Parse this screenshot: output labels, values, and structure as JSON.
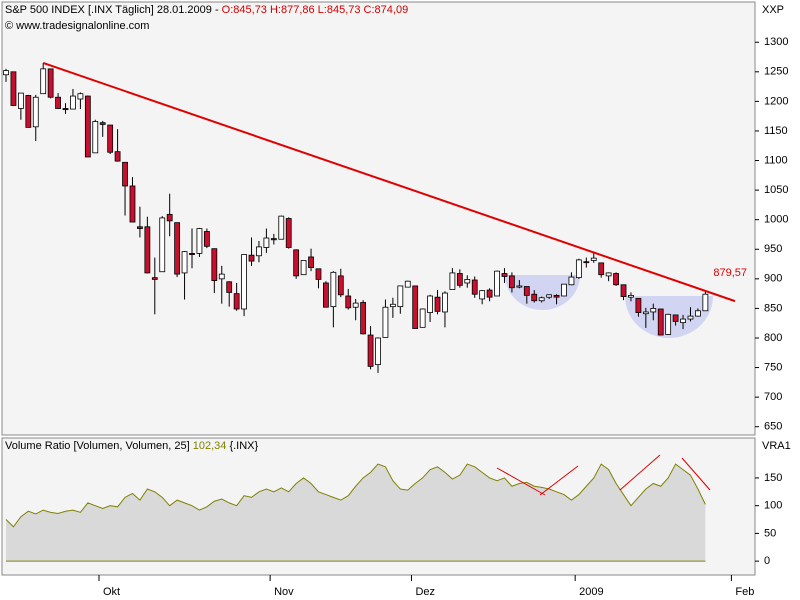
{
  "chart_data": [
    {
      "type": "candlestick",
      "title": "S&P 500 INDEX [.INX  Täglich] 28.01.2009 -",
      "subtitle": "O:845,73 H:877,86 L:845,73 C:874,09",
      "source": "© www.tradesignalonline.com",
      "axis_label": "XXP",
      "up_color": "#ffffff",
      "down_color": "#c8102e",
      "categories": [
        null,
        null,
        null,
        null,
        null,
        null,
        null,
        null,
        null,
        null,
        null,
        null,
        null,
        null,
        null,
        null,
        null,
        null,
        null,
        null,
        null,
        null,
        null,
        null,
        null,
        null,
        null,
        null,
        null,
        null,
        null,
        null,
        null,
        null,
        null,
        null,
        null,
        null,
        null,
        null,
        null,
        null,
        null,
        null,
        null,
        null,
        null,
        null,
        null,
        null,
        null,
        null,
        null,
        null,
        null,
        null,
        null,
        null,
        null,
        null,
        null,
        null,
        null,
        null,
        null,
        null,
        null,
        null,
        null,
        null,
        null,
        null,
        null,
        null,
        null,
        null,
        null,
        null,
        null,
        null,
        null,
        null,
        null,
        null,
        null,
        null,
        null,
        null,
        null,
        null,
        null,
        null,
        null,
        null,
        null
      ],
      "ohlc": [
        [
          1245,
          1255,
          1233,
          1252
        ],
        [
          1250,
          1250,
          1192,
          1193
        ],
        [
          1188,
          1214,
          1169,
          1214
        ],
        [
          1210,
          1211,
          1156,
          1156
        ],
        [
          1157,
          1211,
          1133,
          1207
        ],
        [
          1213,
          1265,
          1213,
          1255
        ],
        [
          1255,
          1255,
          1205,
          1207
        ],
        [
          1207,
          1214,
          1187,
          1188
        ],
        [
          1188,
          1197,
          1179,
          1186
        ],
        [
          1187,
          1221,
          1187,
          1209
        ],
        [
          1204,
          1215,
          1187,
          1213
        ],
        [
          1209,
          1210,
          1106,
          1106
        ],
        [
          1113,
          1169,
          1113,
          1166
        ],
        [
          1164,
          1167,
          1140,
          1161
        ],
        [
          1160,
          1160,
          1111,
          1114
        ],
        [
          1115,
          1153,
          1098,
          1099
        ],
        [
          1097,
          1097,
          1007,
          1057
        ],
        [
          1057,
          1072,
          996,
          996
        ],
        [
          988,
          1022,
          970,
          985
        ],
        [
          988,
          1005,
          909,
          910
        ],
        [
          902,
          936,
          840,
          899
        ],
        [
          912,
          1006,
          912,
          1003
        ],
        [
          1009,
          1044,
          972,
          998
        ],
        [
          995,
          995,
          903,
          908
        ],
        [
          910,
          947,
          865,
          946
        ],
        [
          943,
          985,
          918,
          941
        ],
        [
          943,
          986,
          937,
          985
        ],
        [
          980,
          985,
          952,
          955
        ],
        [
          951,
          951,
          876,
          897
        ],
        [
          900,
          922,
          858,
          908
        ],
        [
          895,
          896,
          853,
          877
        ],
        [
          875,
          893,
          846,
          849
        ],
        [
          849,
          941,
          837,
          941
        ],
        [
          940,
          970,
          922,
          930
        ],
        [
          939,
          964,
          928,
          954
        ],
        [
          953,
          985,
          944,
          969
        ],
        [
          968,
          976,
          958,
          966
        ],
        [
          967,
          1007,
          967,
          1006
        ],
        [
          1002,
          1004,
          951,
          953
        ],
        [
          949,
          950,
          900,
          905
        ],
        [
          907,
          931,
          907,
          931
        ],
        [
          937,
          951,
          913,
          919
        ],
        [
          917,
          917,
          884,
          899
        ],
        [
          893,
          896,
          852,
          852
        ],
        [
          853,
          913,
          818,
          911
        ],
        [
          905,
          917,
          869,
          873
        ],
        [
          871,
          883,
          848,
          851
        ],
        [
          852,
          866,
          830,
          859
        ],
        [
          860,
          864,
          806,
          807
        ],
        [
          805,
          820,
          747,
          752
        ],
        [
          755,
          801,
          741,
          800
        ],
        [
          801,
          865,
          801,
          852
        ],
        [
          853,
          868,
          834,
          857
        ],
        [
          853,
          888,
          841,
          888
        ],
        [
          886,
          897,
          886,
          896
        ],
        [
          888,
          888,
          816,
          816
        ],
        [
          818,
          850,
          818,
          849
        ],
        [
          843,
          873,
          827,
          871
        ],
        [
          869,
          881,
          840,
          845
        ],
        [
          844,
          879,
          818,
          876
        ],
        [
          882,
          918,
          882,
          910
        ],
        [
          909,
          916,
          885,
          889
        ],
        [
          893,
          906,
          885,
          899
        ],
        [
          898,
          904,
          868,
          874
        ],
        [
          866,
          881,
          857,
          880
        ],
        [
          881,
          884,
          862,
          869
        ],
        [
          871,
          914,
          871,
          913
        ],
        [
          909,
          918,
          893,
          904
        ],
        [
          905,
          911,
          877,
          885
        ],
        [
          886,
          898,
          884,
          888
        ],
        [
          887,
          887,
          858,
          872
        ],
        [
          874,
          881,
          860,
          863
        ],
        [
          863,
          870,
          860,
          868
        ],
        [
          869,
          874,
          866,
          873
        ],
        [
          872,
          874,
          857,
          869
        ],
        [
          871,
          891,
          871,
          891
        ],
        [
          890,
          911,
          889,
          903
        ],
        [
          902,
          934,
          900,
          932
        ],
        [
          929,
          936,
          919,
          928
        ],
        [
          931,
          943,
          927,
          935
        ],
        [
          927,
          927,
          902,
          907
        ],
        [
          905,
          911,
          896,
          910
        ],
        [
          909,
          911,
          888,
          890
        ],
        [
          890,
          890,
          864,
          870
        ],
        [
          869,
          877,
          862,
          872
        ],
        [
          867,
          867,
          836,
          843
        ],
        [
          841,
          851,
          817,
          844
        ],
        [
          844,
          858,
          830,
          850
        ],
        [
          849,
          849,
          805,
          805
        ],
        [
          806,
          841,
          805,
          840
        ],
        [
          839,
          839,
          821,
          828
        ],
        [
          826,
          839,
          815,
          832
        ],
        [
          832,
          852,
          828,
          837
        ],
        [
          837,
          850,
          836,
          846
        ],
        [
          846,
          878,
          846,
          874
        ]
      ],
      "ylim": [
        636,
        1368
      ],
      "yticks": [
        650,
        700,
        750,
        800,
        850,
        900,
        950,
        1000,
        1050,
        1100,
        1150,
        1200,
        1250,
        1300
      ],
      "trendline": {
        "x": [
          5,
          94
        ],
        "values": [
          1265,
          879.57
        ],
        "label": "879,57",
        "color": "#e00000"
      }
    },
    {
      "type": "area",
      "title": "Volume Ratio [Volumen, Volumen, 25]",
      "last_label": "102,34",
      "symbol": "{.INX}",
      "axis_label": "VRA1",
      "color": "#808000",
      "fill": "#d9d9d9",
      "values": [
        75,
        62,
        80,
        90,
        85,
        92,
        88,
        86,
        90,
        92,
        88,
        105,
        100,
        95,
        100,
        98,
        115,
        122,
        110,
        130,
        125,
        115,
        100,
        110,
        105,
        100,
        92,
        98,
        108,
        112,
        105,
        100,
        118,
        115,
        125,
        130,
        125,
        132,
        125,
        140,
        150,
        140,
        125,
        120,
        115,
        110,
        118,
        135,
        150,
        160,
        175,
        170,
        145,
        130,
        128,
        140,
        150,
        165,
        170,
        160,
        148,
        155,
        175,
        170,
        160,
        150,
        145,
        150,
        135,
        140,
        142,
        135,
        133,
        130,
        125,
        120,
        110,
        120,
        135,
        150,
        175,
        165,
        140,
        120,
        100,
        115,
        130,
        140,
        135,
        150,
        175,
        165,
        155,
        130,
        102.34
      ],
      "ylim": [
        -25,
        222
      ],
      "yticks": [
        0,
        50,
        100,
        150
      ],
      "xticks": [
        {
          "value": 12.5,
          "label": "Okt"
        },
        {
          "value": 35.5,
          "label": "Nov"
        },
        {
          "value": 54.5,
          "label": "Dez"
        },
        {
          "value": 76.5,
          "label": "2009"
        },
        {
          "value": 97.5,
          "label": "Feb"
        }
      ]
    }
  ]
}
